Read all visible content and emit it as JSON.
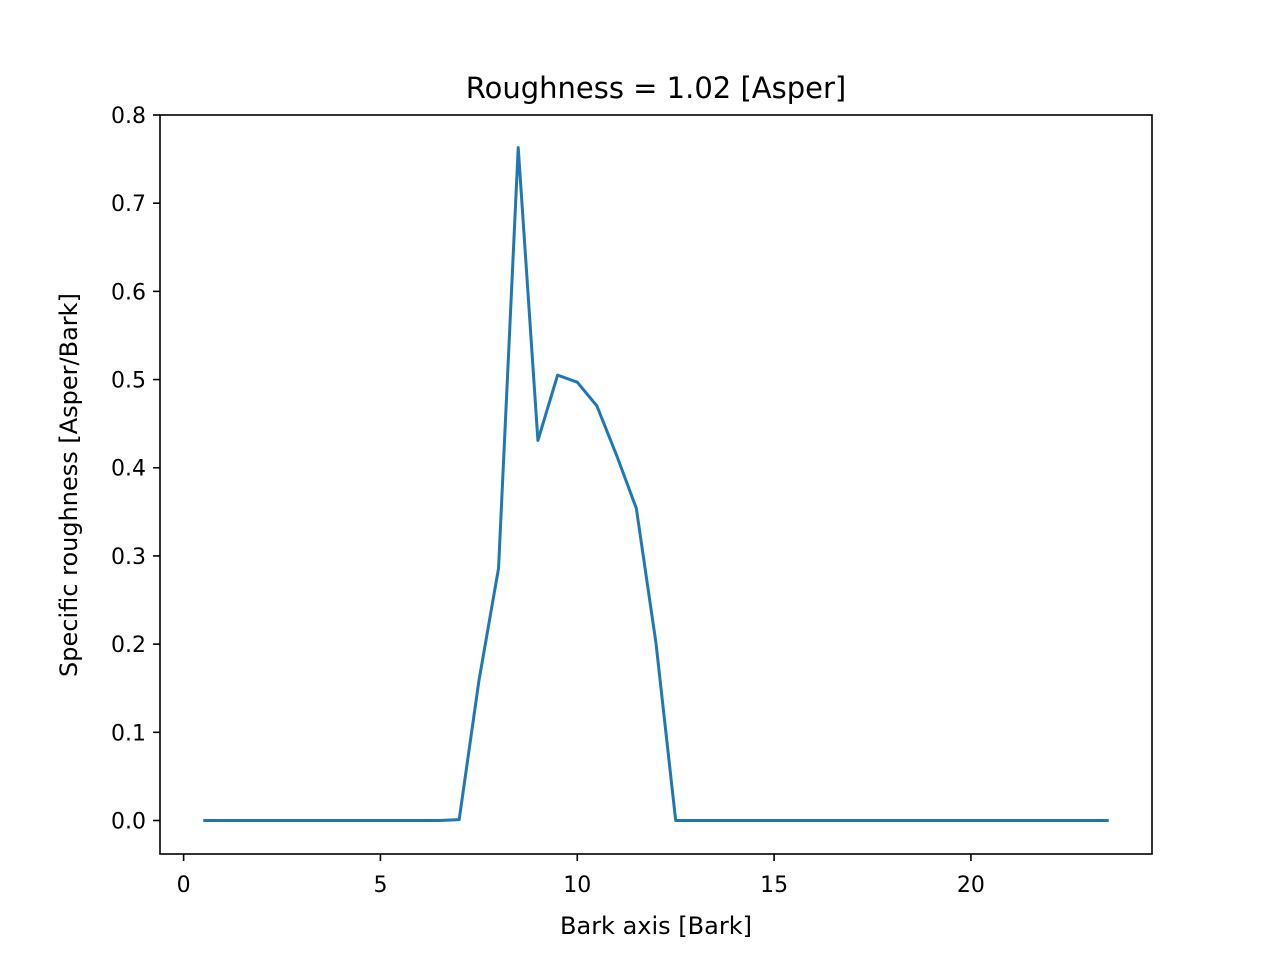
{
  "chart_data": {
    "type": "line",
    "title": "Roughness = 1.02 [Asper]",
    "xlabel": "Bark axis [Bark]",
    "ylabel": "Specific roughness [Asper/Bark]",
    "xlim": [
      -0.6,
      24.6
    ],
    "ylim": [
      -0.038,
      0.8
    ],
    "xticks": [
      0,
      5,
      10,
      15,
      20
    ],
    "xtick_labels": [
      "0",
      "5",
      "10",
      "15",
      "20"
    ],
    "yticks": [
      0.0,
      0.1,
      0.2,
      0.3,
      0.4,
      0.5,
      0.6,
      0.7,
      0.8
    ],
    "ytick_labels": [
      "0.0",
      "0.1",
      "0.2",
      "0.3",
      "0.4",
      "0.5",
      "0.6",
      "0.7",
      "0.8"
    ],
    "grid": false,
    "series": [
      {
        "color": "#1f77b4",
        "x": [
          0.5,
          1,
          1.5,
          2,
          2.5,
          3,
          3.5,
          4,
          4.5,
          5,
          5.5,
          6,
          6.5,
          7,
          7.5,
          8,
          8.5,
          9,
          9.5,
          10,
          10.5,
          11,
          11.5,
          12,
          12.5,
          13,
          13.5,
          14,
          14.5,
          15,
          15.5,
          16,
          16.5,
          17,
          17.5,
          18,
          18.5,
          19,
          19.5,
          20,
          20.5,
          21,
          21.5,
          22,
          22.5,
          23,
          23.5
        ],
        "y": [
          0,
          0,
          0,
          0,
          0,
          0,
          0,
          0,
          0,
          0,
          0,
          0,
          0,
          0.001,
          0.158,
          0.286,
          0.763,
          0.431,
          0.505,
          0.497,
          0.47,
          0.414,
          0.354,
          0.201,
          0,
          0,
          0,
          0,
          0,
          0,
          0,
          0,
          0,
          0,
          0,
          0,
          0,
          0,
          0,
          0,
          0,
          0,
          0,
          0,
          0,
          0,
          0
        ]
      }
    ]
  }
}
